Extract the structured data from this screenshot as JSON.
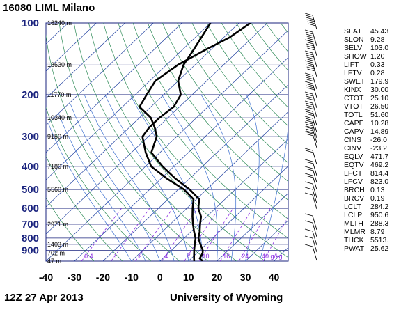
{
  "header": {
    "title": "16080 LIML Milano"
  },
  "footer": {
    "left": "12Z 27 Apr 2013",
    "right": "University of Wyoming"
  },
  "colors": {
    "pressure_label": "#1a237e",
    "isotherm": "#1f3f9f",
    "dry_adiabat": "#2e8b57",
    "mixing_ratio": "#8a2be2",
    "moist_adiabat": "#3b6fcf",
    "grid": "#1a237e",
    "profile": "#000000"
  },
  "chart_data": {
    "type": "line",
    "title": "16080 LIML Milano",
    "xlabel": "",
    "ylabel": "",
    "xlim": [
      -40,
      45
    ],
    "ylim": [
      1000,
      100
    ],
    "y_scale": "log",
    "grid": true,
    "x_ticks": [
      "-40",
      "-30",
      "-20",
      "-10",
      "0",
      "10",
      "20",
      "30",
      "40"
    ],
    "pressure_levels": [
      {
        "p": 100,
        "label": "100",
        "height": "16240 m"
      },
      {
        "p": 150,
        "label": "",
        "height": "13630 m"
      },
      {
        "p": 200,
        "label": "200",
        "height": "11770 m"
      },
      {
        "p": 250,
        "label": "",
        "height": "10340 m"
      },
      {
        "p": 300,
        "label": "300",
        "height": "9150 m"
      },
      {
        "p": 400,
        "label": "400",
        "height": "7180 m"
      },
      {
        "p": 500,
        "label": "500",
        "height": "5560 m"
      },
      {
        "p": 600,
        "label": "600",
        "height": ""
      },
      {
        "p": 700,
        "label": "700",
        "height": "2971 m"
      },
      {
        "p": 800,
        "label": "800",
        "height": ""
      },
      {
        "p": 850,
        "label": "",
        "height": "1403 m"
      },
      {
        "p": 900,
        "label": "900",
        "height": ""
      },
      {
        "p": 925,
        "label": "",
        "height": "702 m"
      },
      {
        "p": 1000,
        "label": "",
        "height": "47 m"
      }
    ],
    "mixing_ratio_labels": [
      "0.4",
      "1",
      "2",
      "4",
      "7",
      "10",
      "16",
      "24",
      "40 g/kg"
    ],
    "series": [
      {
        "values": [
          [
            100,
            -56
          ],
          [
            115,
            -58
          ],
          [
            130,
            -62
          ],
          [
            150,
            -66
          ],
          [
            175,
            -68
          ],
          [
            200,
            -66
          ],
          [
            225,
            -64
          ],
          [
            250,
            -56
          ],
          [
            275,
            -51
          ],
          [
            300,
            -47
          ],
          [
            350,
            -43
          ],
          [
            400,
            -34
          ],
          [
            450,
            -25
          ],
          [
            500,
            -16
          ],
          [
            550,
            -9
          ],
          [
            600,
            -6
          ],
          [
            650,
            -2
          ],
          [
            700,
            0.5
          ],
          [
            750,
            3
          ],
          [
            800,
            5
          ],
          [
            850,
            8
          ],
          [
            900,
            11
          ],
          [
            925,
            12
          ],
          [
            950,
            12.5
          ],
          [
            975,
            13
          ],
          [
            1000,
            15
          ]
        ]
      },
      {
        "values": [
          [
            100,
            -70
          ],
          [
            130,
            -66
          ],
          [
            150,
            -64
          ],
          [
            175,
            -60
          ],
          [
            200,
            -54
          ],
          [
            225,
            -52
          ],
          [
            250,
            -53
          ],
          [
            275,
            -53
          ],
          [
            300,
            -52
          ],
          [
            350,
            -45
          ],
          [
            400,
            -38
          ],
          [
            450,
            -28
          ],
          [
            500,
            -18
          ],
          [
            550,
            -11
          ],
          [
            600,
            -8
          ],
          [
            650,
            -5
          ],
          [
            700,
            -2
          ],
          [
            750,
            1
          ],
          [
            800,
            4
          ],
          [
            850,
            6
          ],
          [
            900,
            8
          ],
          [
            925,
            9
          ],
          [
            950,
            10
          ],
          [
            975,
            11
          ],
          [
            1000,
            12
          ]
        ]
      }
    ],
    "indices": [
      {
        "name": "SLAT",
        "value": "45.43"
      },
      {
        "name": "SLON",
        "value": "9.28"
      },
      {
        "name": "SELV",
        "value": "103.0"
      },
      {
        "name": "SHOW",
        "value": "1.20"
      },
      {
        "name": "LIFT",
        "value": "0.33"
      },
      {
        "name": "LFTV",
        "value": "0.28"
      },
      {
        "name": "SWET",
        "value": "179.9"
      },
      {
        "name": "KINX",
        "value": "30.00"
      },
      {
        "name": "CTOT",
        "value": "25.10"
      },
      {
        "name": "VTOT",
        "value": "26.50"
      },
      {
        "name": "TOTL",
        "value": "51.60"
      },
      {
        "name": "CAPE",
        "value": "10.28"
      },
      {
        "name": "CAPV",
        "value": "14.89"
      },
      {
        "name": "CINS",
        "value": "-26.0"
      },
      {
        "name": "CINV",
        "value": "-23.2"
      },
      {
        "name": "EQLV",
        "value": "471.7"
      },
      {
        "name": "EQTV",
        "value": "469.2"
      },
      {
        "name": "LFCT",
        "value": "814.4"
      },
      {
        "name": "LFCV",
        "value": "823.0"
      },
      {
        "name": "BRCH",
        "value": "0.13"
      },
      {
        "name": "BRCV",
        "value": "0.19"
      },
      {
        "name": "LCLT",
        "value": "284.2"
      },
      {
        "name": "LCLP",
        "value": "950.6"
      },
      {
        "name": "MLTH",
        "value": "288.3"
      },
      {
        "name": "MLMR",
        "value": "8.79"
      },
      {
        "name": "THCK",
        "value": "5513."
      },
      {
        "name": "PWAT",
        "value": "25.62"
      }
    ]
  }
}
